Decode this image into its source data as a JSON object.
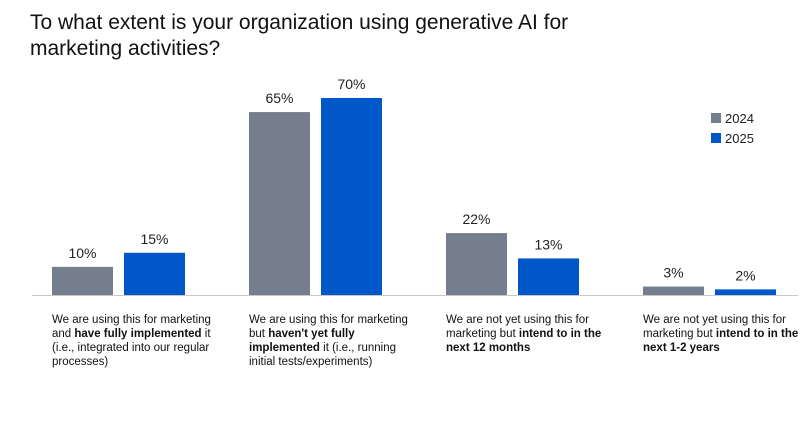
{
  "chart_data": {
    "type": "bar",
    "title": "To what extent is your organization using generative AI for marketing activities?",
    "categories": [
      [
        "We are using this for marketing and ",
        {
          "b": "have fully implemented"
        },
        " it (i.e., integrated into our regular processes)"
      ],
      [
        "We are using this for marketing but ",
        {
          "b": "haven't yet fully implemented"
        },
        " it (i.e., running initial tests/experiments)"
      ],
      [
        "We are not yet using this for marketing but ",
        {
          "b": "intend to in the next 12 months"
        }
      ],
      [
        "We are not yet using this for marketing but ",
        {
          "b": "intend to in the next 1-2 years"
        }
      ]
    ],
    "series": [
      {
        "name": "2024",
        "color": "#747e8c",
        "values": [
          10,
          65,
          22,
          3
        ]
      },
      {
        "name": "2025",
        "color": "#0058c8",
        "values": [
          15,
          70,
          13,
          2
        ]
      }
    ],
    "value_suffix": "%",
    "ylim": [
      0,
      70
    ],
    "legend_position": "top-right",
    "grid": false
  }
}
